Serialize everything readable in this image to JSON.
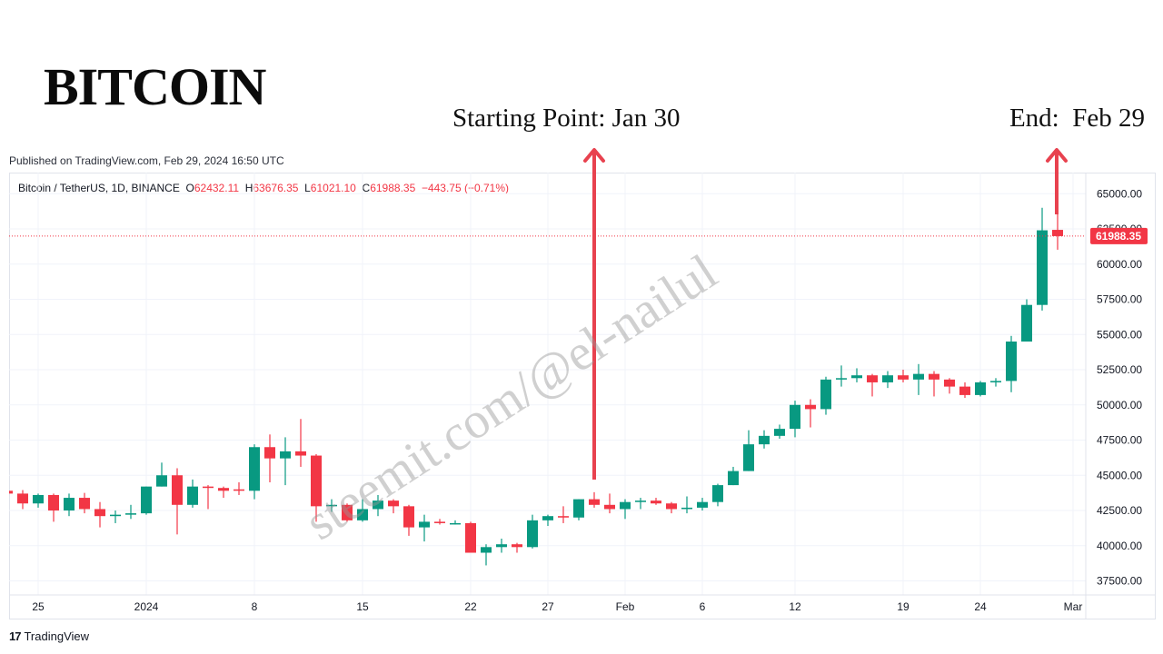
{
  "header": {
    "title": "BITCOIN",
    "published": "Published on TradingView.com, Feb 29, 2024 16:50 UTC",
    "start_annotation": "Starting Point: Jan 30",
    "end_annotation": "End:  Feb 29"
  },
  "symbol": {
    "name": "Bitcoin / TetherUS, 1D, BINANCE",
    "open_label": "O",
    "open": "62432.11",
    "high_label": "H",
    "high": "63676.35",
    "low_label": "L",
    "low": "61021.10",
    "close_label": "C",
    "close": "61988.35",
    "change": "−443.75 (−0.71%)"
  },
  "watermark": "steemit.com/@el-nailul",
  "footer": {
    "logo_mark": "17",
    "logo_text": "TradingView"
  },
  "colors": {
    "up": "#089981",
    "down": "#f23645",
    "arrow": "#e8424f",
    "grid": "#f0f3fa"
  },
  "chart_data": {
    "type": "candlestick",
    "ylim": [
      36500,
      66500
    ],
    "y_ticks": [
      37500,
      40000,
      42500,
      45000,
      47500,
      50000,
      52500,
      55000,
      57500,
      60000,
      62500,
      65000
    ],
    "y_tick_labels": [
      "37500.00",
      "40000.00",
      "42500.00",
      "45000.00",
      "47500.00",
      "50000.00",
      "52500.00",
      "55000.00",
      "57500.00",
      "60000.00",
      "62500.00",
      "65000.00"
    ],
    "x_ticks": [
      {
        "label": "25",
        "date": "2023-12-25"
      },
      {
        "label": "2024",
        "date": "2024-01-01"
      },
      {
        "label": "8",
        "date": "2024-01-08"
      },
      {
        "label": "15",
        "date": "2024-01-15"
      },
      {
        "label": "22",
        "date": "2024-01-22"
      },
      {
        "label": "27",
        "date": "2024-01-27"
      },
      {
        "label": "Feb",
        "date": "2024-02-01"
      },
      {
        "label": "6",
        "date": "2024-02-06"
      },
      {
        "label": "12",
        "date": "2024-02-12"
      },
      {
        "label": "19",
        "date": "2024-02-19"
      },
      {
        "label": "24",
        "date": "2024-02-24"
      },
      {
        "label": "Mar",
        "date": "2024-03-01"
      }
    ],
    "last_price": 61988.35,
    "last_price_label": "61988.35",
    "start_date": "2024-01-30",
    "end_date": "2024-02-29",
    "candles": [
      {
        "date": "2023-12-23",
        "o": 43900,
        "h": 44050,
        "l": 43600,
        "c": 43700
      },
      {
        "date": "2023-12-24",
        "o": 43700,
        "h": 43950,
        "l": 42600,
        "c": 43000
      },
      {
        "date": "2023-12-25",
        "o": 43000,
        "h": 43700,
        "l": 42700,
        "c": 43600
      },
      {
        "date": "2023-12-26",
        "o": 43600,
        "h": 43700,
        "l": 41700,
        "c": 42500
      },
      {
        "date": "2023-12-27",
        "o": 42500,
        "h": 43700,
        "l": 42100,
        "c": 43400
      },
      {
        "date": "2023-12-28",
        "o": 43400,
        "h": 43750,
        "l": 42300,
        "c": 42600
      },
      {
        "date": "2023-12-29",
        "o": 42600,
        "h": 43100,
        "l": 41300,
        "c": 42100
      },
      {
        "date": "2023-12-30",
        "o": 42100,
        "h": 42500,
        "l": 41600,
        "c": 42200
      },
      {
        "date": "2023-12-31",
        "o": 42200,
        "h": 42900,
        "l": 41900,
        "c": 42300
      },
      {
        "date": "2024-01-01",
        "o": 42300,
        "h": 44200,
        "l": 42200,
        "c": 44200
      },
      {
        "date": "2024-01-02",
        "o": 44200,
        "h": 45900,
        "l": 44200,
        "c": 45000
      },
      {
        "date": "2024-01-03",
        "o": 45000,
        "h": 45500,
        "l": 40800,
        "c": 42900
      },
      {
        "date": "2024-01-04",
        "o": 42900,
        "h": 44700,
        "l": 42700,
        "c": 44200
      },
      {
        "date": "2024-01-05",
        "o": 44200,
        "h": 44300,
        "l": 42600,
        "c": 44100
      },
      {
        "date": "2024-01-06",
        "o": 44100,
        "h": 44200,
        "l": 43400,
        "c": 43900
      },
      {
        "date": "2024-01-07",
        "o": 44000,
        "h": 44500,
        "l": 43600,
        "c": 43900
      },
      {
        "date": "2024-01-08",
        "o": 43900,
        "h": 47200,
        "l": 43300,
        "c": 47000
      },
      {
        "date": "2024-01-09",
        "o": 47000,
        "h": 47900,
        "l": 44500,
        "c": 46200
      },
      {
        "date": "2024-01-10",
        "o": 46200,
        "h": 47700,
        "l": 44300,
        "c": 46700
      },
      {
        "date": "2024-01-11",
        "o": 46700,
        "h": 49000,
        "l": 45600,
        "c": 46400
      },
      {
        "date": "2024-01-12",
        "o": 46400,
        "h": 46500,
        "l": 41700,
        "c": 42800
      },
      {
        "date": "2024-01-13",
        "o": 42800,
        "h": 43300,
        "l": 42400,
        "c": 42900
      },
      {
        "date": "2024-01-14",
        "o": 42900,
        "h": 43000,
        "l": 41700,
        "c": 41800
      },
      {
        "date": "2024-01-15",
        "o": 41800,
        "h": 43300,
        "l": 41700,
        "c": 42600
      },
      {
        "date": "2024-01-16",
        "o": 42600,
        "h": 43600,
        "l": 42100,
        "c": 43200
      },
      {
        "date": "2024-01-17",
        "o": 43200,
        "h": 43300,
        "l": 42300,
        "c": 42800
      },
      {
        "date": "2024-01-18",
        "o": 42800,
        "h": 42900,
        "l": 40700,
        "c": 41300
      },
      {
        "date": "2024-01-19",
        "o": 41300,
        "h": 42200,
        "l": 40300,
        "c": 41700
      },
      {
        "date": "2024-01-20",
        "o": 41700,
        "h": 41900,
        "l": 41500,
        "c": 41600
      },
      {
        "date": "2024-01-21",
        "o": 41600,
        "h": 41800,
        "l": 41500,
        "c": 41600
      },
      {
        "date": "2024-01-22",
        "o": 41600,
        "h": 41700,
        "l": 39500,
        "c": 39500
      },
      {
        "date": "2024-01-23",
        "o": 39500,
        "h": 40100,
        "l": 38600,
        "c": 39900
      },
      {
        "date": "2024-01-24",
        "o": 39900,
        "h": 40500,
        "l": 39500,
        "c": 40100
      },
      {
        "date": "2024-01-25",
        "o": 40100,
        "h": 40200,
        "l": 39500,
        "c": 39900
      },
      {
        "date": "2024-01-26",
        "o": 39900,
        "h": 42200,
        "l": 39800,
        "c": 41800
      },
      {
        "date": "2024-01-27",
        "o": 41800,
        "h": 42200,
        "l": 41400,
        "c": 42100
      },
      {
        "date": "2024-01-28",
        "o": 42100,
        "h": 42800,
        "l": 41600,
        "c": 42000
      },
      {
        "date": "2024-01-29",
        "o": 42000,
        "h": 43300,
        "l": 41800,
        "c": 43300
      },
      {
        "date": "2024-01-30",
        "o": 43300,
        "h": 43800,
        "l": 42700,
        "c": 42900
      },
      {
        "date": "2024-01-31",
        "o": 42900,
        "h": 43700,
        "l": 42300,
        "c": 42600
      },
      {
        "date": "2024-02-01",
        "o": 42600,
        "h": 43300,
        "l": 41900,
        "c": 43100
      },
      {
        "date": "2024-02-02",
        "o": 43100,
        "h": 43400,
        "l": 42600,
        "c": 43200
      },
      {
        "date": "2024-02-03",
        "o": 43200,
        "h": 43400,
        "l": 42900,
        "c": 43000
      },
      {
        "date": "2024-02-04",
        "o": 43000,
        "h": 43100,
        "l": 42300,
        "c": 42600
      },
      {
        "date": "2024-02-05",
        "o": 42600,
        "h": 43500,
        "l": 42300,
        "c": 42700
      },
      {
        "date": "2024-02-06",
        "o": 42700,
        "h": 43400,
        "l": 42500,
        "c": 43100
      },
      {
        "date": "2024-02-07",
        "o": 43100,
        "h": 44400,
        "l": 42800,
        "c": 44300
      },
      {
        "date": "2024-02-08",
        "o": 44300,
        "h": 45600,
        "l": 44300,
        "c": 45300
      },
      {
        "date": "2024-02-09",
        "o": 45300,
        "h": 48200,
        "l": 45300,
        "c": 47200
      },
      {
        "date": "2024-02-10",
        "o": 47200,
        "h": 48200,
        "l": 46900,
        "c": 47800
      },
      {
        "date": "2024-02-11",
        "o": 47800,
        "h": 48600,
        "l": 47600,
        "c": 48300
      },
      {
        "date": "2024-02-12",
        "o": 48300,
        "h": 50300,
        "l": 47700,
        "c": 50000
      },
      {
        "date": "2024-02-13",
        "o": 50000,
        "h": 50400,
        "l": 48400,
        "c": 49700
      },
      {
        "date": "2024-02-14",
        "o": 49700,
        "h": 52000,
        "l": 49300,
        "c": 51800
      },
      {
        "date": "2024-02-15",
        "o": 51800,
        "h": 52800,
        "l": 51300,
        "c": 51900
      },
      {
        "date": "2024-02-16",
        "o": 51900,
        "h": 52600,
        "l": 51600,
        "c": 52100
      },
      {
        "date": "2024-02-17",
        "o": 52100,
        "h": 52200,
        "l": 50600,
        "c": 51600
      },
      {
        "date": "2024-02-18",
        "o": 51600,
        "h": 52400,
        "l": 51200,
        "c": 52100
      },
      {
        "date": "2024-02-19",
        "o": 52100,
        "h": 52500,
        "l": 51600,
        "c": 51800
      },
      {
        "date": "2024-02-20",
        "o": 51800,
        "h": 52900,
        "l": 50700,
        "c": 52200
      },
      {
        "date": "2024-02-21",
        "o": 52200,
        "h": 52400,
        "l": 50600,
        "c": 51800
      },
      {
        "date": "2024-02-22",
        "o": 51800,
        "h": 51900,
        "l": 50800,
        "c": 51300
      },
      {
        "date": "2024-02-23",
        "o": 51300,
        "h": 51600,
        "l": 50500,
        "c": 50700
      },
      {
        "date": "2024-02-24",
        "o": 50700,
        "h": 51700,
        "l": 50600,
        "c": 51600
      },
      {
        "date": "2024-02-25",
        "o": 51600,
        "h": 51900,
        "l": 51300,
        "c": 51700
      },
      {
        "date": "2024-02-26",
        "o": 51700,
        "h": 54900,
        "l": 50900,
        "c": 54500
      },
      {
        "date": "2024-02-27",
        "o": 54500,
        "h": 57500,
        "l": 54500,
        "c": 57100
      },
      {
        "date": "2024-02-28",
        "o": 57100,
        "h": 64000,
        "l": 56700,
        "c": 62400
      },
      {
        "date": "2024-02-29",
        "o": 62432.11,
        "h": 63676.35,
        "l": 61021.1,
        "c": 61988.35
      }
    ]
  }
}
